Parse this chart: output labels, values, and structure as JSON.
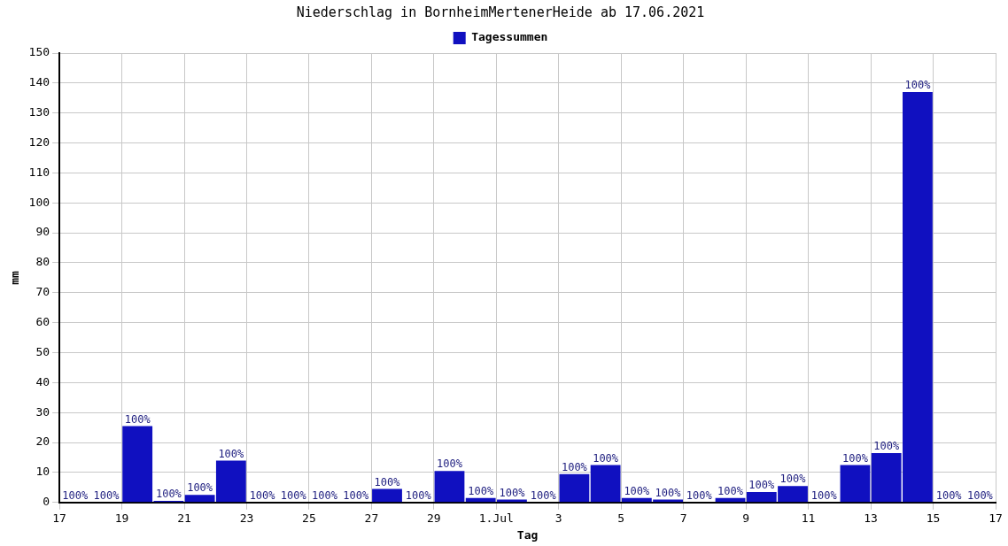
{
  "chart_data": {
    "type": "bar",
    "title": "Niederschlag in BornheimMertenerHeide ab 17.06.2021",
    "xlabel": "Tag",
    "ylabel": "mm",
    "x": [
      "2021-06-17T12:00",
      "2021-06-18T12:00",
      "2021-06-19T12:00",
      "2021-06-20T12:00",
      "2021-06-21T12:00",
      "2021-06-22T12:00",
      "2021-06-23T12:00",
      "2021-06-24T12:00",
      "2021-06-25T12:00",
      "2021-06-26T12:00",
      "2021-06-27T12:00",
      "2021-06-28T12:00",
      "2021-06-29T12:00",
      "2021-06-30T12:00",
      "2021-07-01T12:00",
      "2021-07-02T12:00",
      "2021-07-03T12:00",
      "2021-07-04T12:00",
      "2021-07-05T12:00",
      "2021-07-06T12:00",
      "2021-07-07T12:00",
      "2021-07-08T12:00",
      "2021-07-09T12:00",
      "2021-07-10T12:00",
      "2021-07-11T12:00",
      "2021-07-12T12:00",
      "2021-07-13T12:00",
      "2021-07-14T12:00",
      "2021-07-15T12:00",
      "2021-07-16T12:00"
    ],
    "series": [
      {
        "name": "Tagessummen",
        "color": "#1010c0",
        "values": [
          0,
          0,
          25.5,
          0.5,
          2.5,
          14,
          0,
          0,
          0,
          0,
          4.5,
          0,
          10.5,
          1.5,
          1,
          0,
          9.5,
          12.5,
          1.5,
          1,
          0,
          1.5,
          3.5,
          5.5,
          0,
          12.5,
          16.5,
          137,
          0,
          0
        ]
      }
    ],
    "annotations": [
      {
        "text": "100%",
        "x": "2021-06-17T12:00",
        "y": 0
      },
      {
        "text": "100%",
        "x": "2021-06-18T12:00",
        "y": 0
      },
      {
        "text": "100%",
        "x": "2021-06-19T12:00",
        "y": 25.5
      },
      {
        "text": "100%",
        "x": "2021-06-20T12:00",
        "y": 0.5
      },
      {
        "text": "100%",
        "x": "2021-06-21T12:00",
        "y": 2.5
      },
      {
        "text": "100%",
        "x": "2021-06-22T12:00",
        "y": 14
      },
      {
        "text": "100%",
        "x": "2021-06-23T12:00",
        "y": 0
      },
      {
        "text": "100%",
        "x": "2021-06-24T12:00",
        "y": 0
      },
      {
        "text": "100%",
        "x": "2021-06-25T12:00",
        "y": 0
      },
      {
        "text": "100%",
        "x": "2021-06-26T12:00",
        "y": 0
      },
      {
        "text": "100%",
        "x": "2021-06-27T12:00",
        "y": 4.5
      },
      {
        "text": "100%",
        "x": "2021-06-28T12:00",
        "y": 0
      },
      {
        "text": "100%",
        "x": "2021-06-29T12:00",
        "y": 10.5
      },
      {
        "text": "100%",
        "x": "2021-06-30T12:00",
        "y": 1.5
      },
      {
        "text": "100%",
        "x": "2021-07-01T12:00",
        "y": 1
      },
      {
        "text": "100%",
        "x": "2021-07-02T12:00",
        "y": 0
      },
      {
        "text": "100%",
        "x": "2021-07-03T12:00",
        "y": 9.5
      },
      {
        "text": "100%",
        "x": "2021-07-04T12:00",
        "y": 12.5
      },
      {
        "text": "100%",
        "x": "2021-07-05T12:00",
        "y": 1.5
      },
      {
        "text": "100%",
        "x": "2021-07-06T12:00",
        "y": 1
      },
      {
        "text": "100%",
        "x": "2021-07-07T12:00",
        "y": 0
      },
      {
        "text": "100%",
        "x": "2021-07-08T12:00",
        "y": 1.5
      },
      {
        "text": "100%",
        "x": "2021-07-09T12:00",
        "y": 3.5
      },
      {
        "text": "100%",
        "x": "2021-07-10T12:00",
        "y": 5.5
      },
      {
        "text": "100%",
        "x": "2021-07-11T12:00",
        "y": 0
      },
      {
        "text": "100%",
        "x": "2021-07-12T12:00",
        "y": 12.5
      },
      {
        "text": "100%",
        "x": "2021-07-13T12:00",
        "y": 16.5
      },
      {
        "text": "100%",
        "x": "2021-07-14T12:00",
        "y": 137
      },
      {
        "text": "100%",
        "x": "2021-07-15T12:00",
        "y": 0
      },
      {
        "text": "100%",
        "x": "2021-07-16T12:00",
        "y": 0
      }
    ],
    "xlim": [
      "2021-06-17",
      "2021-07-17"
    ],
    "xticks": [
      {
        "value": "2021-06-17",
        "label": "17"
      },
      {
        "value": "2021-06-19",
        "label": "19"
      },
      {
        "value": "2021-06-21",
        "label": "21"
      },
      {
        "value": "2021-06-23",
        "label": "23"
      },
      {
        "value": "2021-06-25",
        "label": "25"
      },
      {
        "value": "2021-06-27",
        "label": "27"
      },
      {
        "value": "2021-06-29",
        "label": "29"
      },
      {
        "value": "2021-07-01",
        "label": "1.Jul"
      },
      {
        "value": "2021-07-03",
        "label": "3"
      },
      {
        "value": "2021-07-05",
        "label": "5"
      },
      {
        "value": "2021-07-07",
        "label": "7"
      },
      {
        "value": "2021-07-09",
        "label": "9"
      },
      {
        "value": "2021-07-11",
        "label": "11"
      },
      {
        "value": "2021-07-13",
        "label": "13"
      },
      {
        "value": "2021-07-15",
        "label": "15"
      },
      {
        "value": "2021-07-17",
        "label": "17"
      }
    ],
    "ylim": [
      0,
      150
    ],
    "yticks": [
      0,
      10,
      20,
      30,
      40,
      50,
      60,
      70,
      80,
      90,
      100,
      110,
      120,
      130,
      140,
      150
    ],
    "grid": true,
    "legend": "top"
  }
}
